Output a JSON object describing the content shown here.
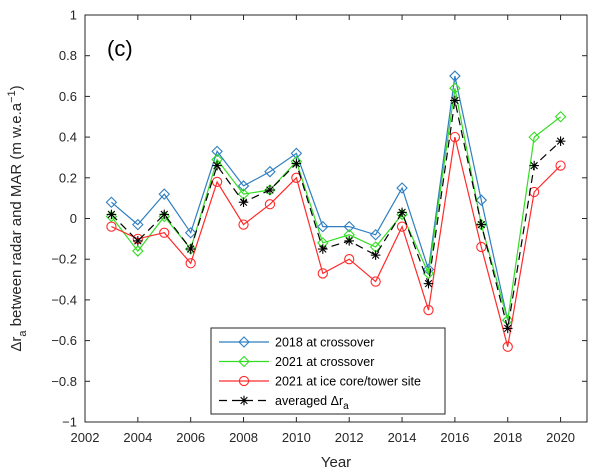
{
  "chart_data": {
    "type": "line",
    "panel_label": "(c)",
    "xlabel": "Year",
    "ylabel_main": "Δr",
    "ylabel_sub": "a",
    "ylabel_rest": " between radar and MAR (m w.e.a",
    "ylabel_sup": "−1",
    "ylabel_close": ")",
    "xlim": [
      2002,
      2021
    ],
    "ylim": [
      -1,
      1
    ],
    "x_ticks": [
      2002,
      2004,
      2006,
      2008,
      2010,
      2012,
      2014,
      2016,
      2018,
      2020
    ],
    "x_tick_labels": [
      "2002",
      "2004",
      "2006",
      "2008",
      "2010",
      "2012",
      "2014",
      "2016",
      "2018",
      "2020"
    ],
    "y_ticks": [
      -1,
      -0.8,
      -0.6,
      -0.4,
      -0.2,
      0,
      0.2,
      0.4,
      0.6,
      0.8,
      1
    ],
    "y_tick_labels": [
      "−1",
      "−0.8",
      "−0.6",
      "−0.4",
      "−0.2",
      "0",
      "0.2",
      "0.4",
      "0.6",
      "0.8",
      "1"
    ],
    "grid": false,
    "legend_position": "bottom-center",
    "series": [
      {
        "name": "2018 at crossover",
        "color": "#2f7fc1",
        "marker": "diamond",
        "linestyle": "solid",
        "x": [
          2003,
          2004,
          2005,
          2006,
          2007,
          2008,
          2009,
          2010,
          2011,
          2012,
          2013,
          2014,
          2015,
          2016,
          2017,
          2018
        ],
        "y": [
          0.08,
          -0.03,
          0.12,
          -0.07,
          0.33,
          0.16,
          0.23,
          0.32,
          -0.04,
          -0.04,
          -0.08,
          0.15,
          -0.25,
          0.7,
          0.09,
          -0.5
        ]
      },
      {
        "name": "2021 at crossover",
        "color": "#33dd22",
        "marker": "diamond",
        "linestyle": "solid",
        "x": [
          2003,
          2004,
          2005,
          2006,
          2007,
          2008,
          2009,
          2010,
          2011,
          2012,
          2013,
          2014,
          2015,
          2016,
          2017,
          2018,
          2019,
          2020
        ],
        "y": [
          0.01,
          -0.16,
          0.01,
          -0.15,
          0.29,
          0.12,
          0.14,
          0.28,
          -0.12,
          -0.08,
          -0.14,
          0.02,
          -0.27,
          0.64,
          -0.03,
          -0.5,
          0.4,
          0.5
        ]
      },
      {
        "name": "2021 at ice core/tower site",
        "color": "#ff2a2a",
        "marker": "circle",
        "linestyle": "solid",
        "x": [
          2003,
          2004,
          2005,
          2006,
          2007,
          2008,
          2009,
          2010,
          2011,
          2012,
          2013,
          2014,
          2015,
          2016,
          2017,
          2018,
          2019,
          2020
        ],
        "y": [
          -0.04,
          -0.1,
          -0.07,
          -0.22,
          0.18,
          -0.03,
          0.07,
          0.2,
          -0.27,
          -0.2,
          -0.31,
          -0.04,
          -0.45,
          0.4,
          -0.14,
          -0.63,
          0.13,
          0.26
        ]
      },
      {
        "name_main": "averaged Δr",
        "name_sub": "a",
        "color": "#000000",
        "marker": "asterisk",
        "linestyle": "dashed",
        "x": [
          2003,
          2004,
          2005,
          2006,
          2007,
          2008,
          2009,
          2010,
          2011,
          2012,
          2013,
          2014,
          2015,
          2016,
          2017,
          2018,
          2019,
          2020
        ],
        "y": [
          0.02,
          -0.11,
          0.02,
          -0.15,
          0.26,
          0.08,
          0.14,
          0.27,
          -0.15,
          -0.11,
          -0.18,
          0.03,
          -0.32,
          0.58,
          -0.03,
          -0.54,
          0.26,
          0.38
        ]
      }
    ]
  }
}
